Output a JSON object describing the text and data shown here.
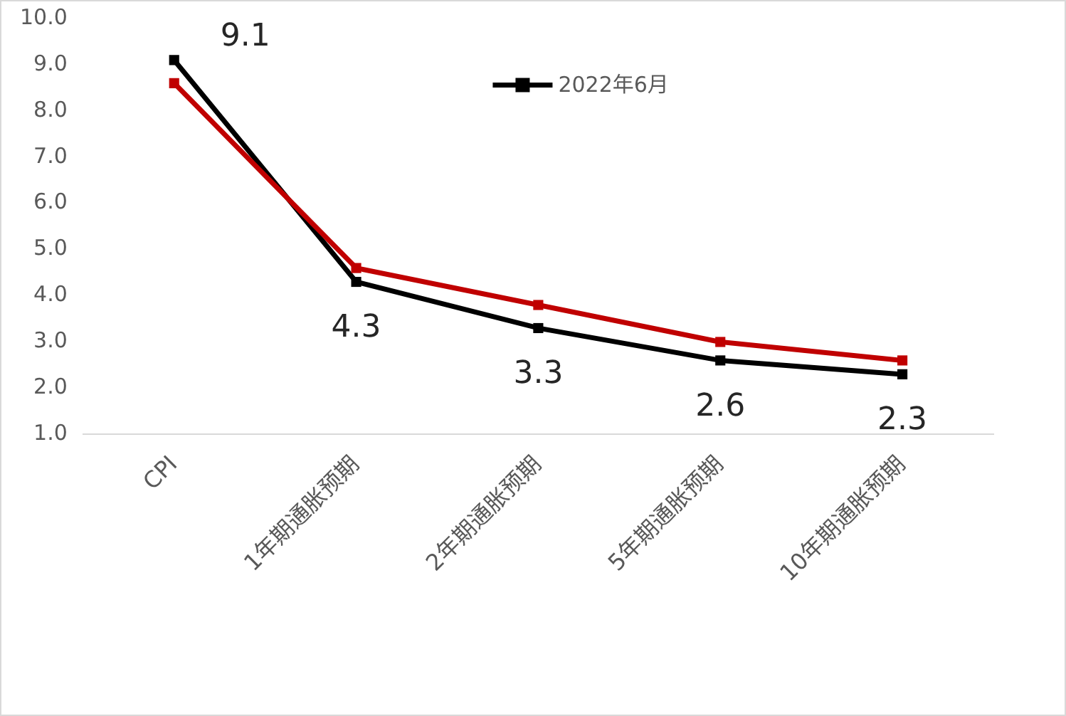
{
  "chart_data": {
    "type": "line",
    "categories": [
      "CPI",
      "1年期通胀预期",
      "2年期通胀预期",
      "5年期通胀预期",
      "10年期通胀预期"
    ],
    "series": [
      {
        "color": "#c00000",
        "values": [
          8.6,
          4.6,
          3.8,
          3.0,
          2.6
        ]
      },
      {
        "name": "2022年6月",
        "color": "#000000",
        "values": [
          9.1,
          4.3,
          3.3,
          2.6,
          2.3
        ],
        "value_labels": [
          "9.1",
          "4.3",
          "3.3",
          "2.6",
          "2.3"
        ]
      }
    ],
    "ylim": [
      1,
      10
    ],
    "yticks": [
      {
        "value": 1,
        "label": "1.0"
      },
      {
        "value": 2,
        "label": "2.0"
      },
      {
        "value": 3,
        "label": "3.0"
      },
      {
        "value": 4,
        "label": "4.0"
      },
      {
        "value": 5,
        "label": "5.0"
      },
      {
        "value": 6,
        "label": "6.0"
      },
      {
        "value": 7,
        "label": "7.0"
      },
      {
        "value": 8,
        "label": "8.0"
      },
      {
        "value": 9,
        "label": "9.0"
      },
      {
        "value": 10,
        "label": "10.0"
      }
    ],
    "grid": false,
    "legend": "top",
    "marker": "square",
    "line_style": "solid"
  }
}
